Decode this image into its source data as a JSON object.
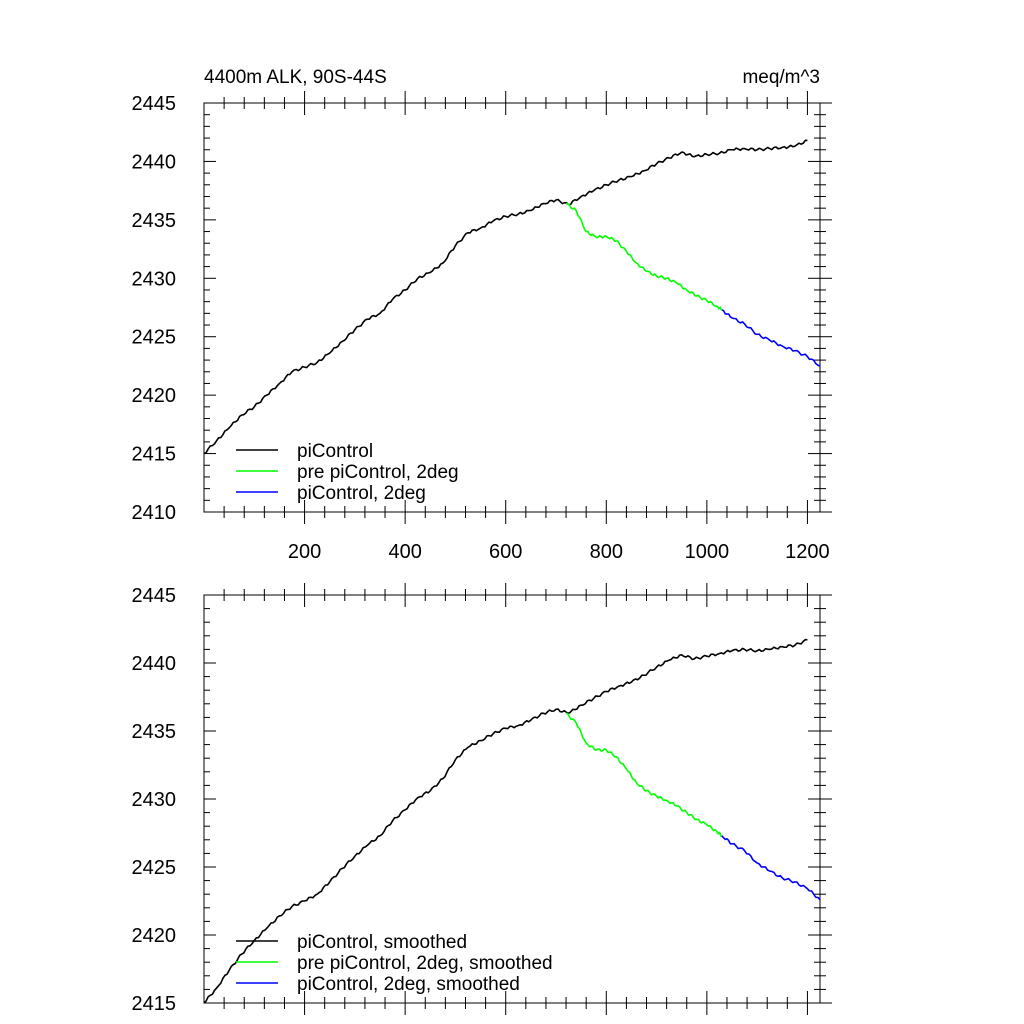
{
  "chart_data": [
    {
      "type": "line",
      "title": "4400m ALK, 90S-44S",
      "units": "meq/m^3",
      "xlim": [
        0,
        1225
      ],
      "ylim": [
        2410,
        2445
      ],
      "x_ticks": [
        200,
        400,
        600,
        800,
        1000,
        1200
      ],
      "x_tick_labels": [
        "200",
        "400",
        "600",
        "800",
        "1000",
        "1200"
      ],
      "y_ticks": [
        2410,
        2415,
        2420,
        2425,
        2430,
        2435,
        2440,
        2445
      ],
      "y_tick_labels": [
        "2410",
        "2415",
        "2420",
        "2425",
        "2430",
        "2435",
        "2440",
        "2445"
      ],
      "legend_position": "bottom-left",
      "series": [
        {
          "name": "piControl",
          "color": "#000000",
          "x": [
            0,
            25,
            50,
            75,
            100,
            125,
            150,
            175,
            200,
            225,
            250,
            275,
            300,
            325,
            350,
            375,
            400,
            425,
            450,
            475,
            500,
            525,
            550,
            575,
            600,
            625,
            650,
            675,
            700,
            725,
            750,
            775,
            800,
            825,
            850,
            875,
            900,
            925,
            950,
            975,
            1000,
            1025,
            1050,
            1075,
            1100,
            1125,
            1150,
            1175,
            1200
          ],
          "y": [
            2415.0,
            2416.1,
            2417.2,
            2418.3,
            2419.0,
            2420.0,
            2421.0,
            2422.0,
            2422.4,
            2422.8,
            2423.6,
            2424.6,
            2425.6,
            2426.5,
            2427.0,
            2428.2,
            2429.0,
            2430.0,
            2430.5,
            2431.3,
            2432.8,
            2433.9,
            2434.3,
            2434.9,
            2435.3,
            2435.5,
            2435.8,
            2436.4,
            2436.7,
            2436.3,
            2437.0,
            2437.5,
            2438.0,
            2438.4,
            2438.7,
            2439.2,
            2439.8,
            2440.3,
            2440.8,
            2440.4,
            2440.6,
            2440.7,
            2441.0,
            2441.1,
            2441.0,
            2441.1,
            2441.2,
            2441.3,
            2441.8
          ]
        },
        {
          "name": "pre piControl, 2deg",
          "color": "#00ff00",
          "x": [
            720,
            740,
            760,
            780,
            800,
            820,
            840,
            860,
            880,
            900,
            920,
            940,
            960,
            980,
            1000,
            1020,
            1030
          ],
          "y": [
            2436.4,
            2435.8,
            2434.0,
            2433.5,
            2433.6,
            2433.2,
            2432.3,
            2431.3,
            2430.6,
            2430.2,
            2430.0,
            2429.6,
            2429.0,
            2428.5,
            2428.1,
            2427.6,
            2427.3
          ]
        },
        {
          "name": "piControl, 2deg",
          "color": "#0000ff",
          "x": [
            1030,
            1050,
            1075,
            1100,
            1125,
            1150,
            1175,
            1200,
            1225
          ],
          "y": [
            2427.3,
            2426.6,
            2426.1,
            2425.2,
            2424.7,
            2424.2,
            2423.8,
            2423.3,
            2422.5
          ]
        }
      ]
    },
    {
      "type": "line",
      "title": "",
      "xlim": [
        0,
        1225
      ],
      "ylim": [
        2415,
        2445
      ],
      "x_ticks": [
        200,
        400,
        600,
        800,
        1000,
        1200
      ],
      "y_ticks": [
        2415,
        2420,
        2425,
        2430,
        2435,
        2440,
        2445
      ],
      "y_tick_labels": [
        "2415",
        "2420",
        "2425",
        "2430",
        "2435",
        "2440",
        "2445"
      ],
      "legend_position": "bottom-left",
      "series": [
        {
          "name": "piControl, smoothed",
          "color": "#000000",
          "x": [
            0,
            25,
            50,
            75,
            100,
            125,
            150,
            175,
            200,
            225,
            250,
            275,
            300,
            325,
            350,
            375,
            400,
            425,
            450,
            475,
            500,
            525,
            550,
            575,
            600,
            625,
            650,
            675,
            700,
            725,
            750,
            775,
            800,
            825,
            850,
            875,
            900,
            925,
            950,
            975,
            1000,
            1025,
            1050,
            1075,
            1100,
            1125,
            1150,
            1175,
            1200
          ],
          "y": [
            2415.0,
            2416.1,
            2417.4,
            2418.6,
            2419.6,
            2420.5,
            2421.4,
            2422.1,
            2422.5,
            2423.0,
            2423.9,
            2424.9,
            2425.8,
            2426.6,
            2427.3,
            2428.4,
            2429.2,
            2430.1,
            2430.6,
            2431.5,
            2432.9,
            2433.8,
            2434.3,
            2434.8,
            2435.2,
            2435.4,
            2435.8,
            2436.3,
            2436.6,
            2436.3,
            2436.9,
            2437.4,
            2437.9,
            2438.3,
            2438.6,
            2439.1,
            2439.7,
            2440.2,
            2440.6,
            2440.3,
            2440.5,
            2440.7,
            2440.9,
            2441.0,
            2440.9,
            2441.0,
            2441.2,
            2441.3,
            2441.7
          ]
        },
        {
          "name": "pre piControl, 2deg, smoothed",
          "color": "#00ff00",
          "x": [
            720,
            740,
            760,
            780,
            800,
            820,
            840,
            860,
            880,
            900,
            920,
            940,
            960,
            980,
            1000,
            1020,
            1030
          ],
          "y": [
            2436.3,
            2435.6,
            2434.1,
            2433.6,
            2433.6,
            2433.1,
            2432.2,
            2431.2,
            2430.6,
            2430.2,
            2429.9,
            2429.5,
            2429.0,
            2428.5,
            2428.1,
            2427.6,
            2427.3
          ]
        },
        {
          "name": "piControl, 2deg, smoothed",
          "color": "#0000ff",
          "x": [
            1030,
            1050,
            1075,
            1100,
            1125,
            1150,
            1175,
            1200,
            1225
          ],
          "y": [
            2427.3,
            2426.7,
            2426.2,
            2425.3,
            2424.7,
            2424.2,
            2423.9,
            2423.4,
            2422.6
          ]
        }
      ]
    }
  ]
}
